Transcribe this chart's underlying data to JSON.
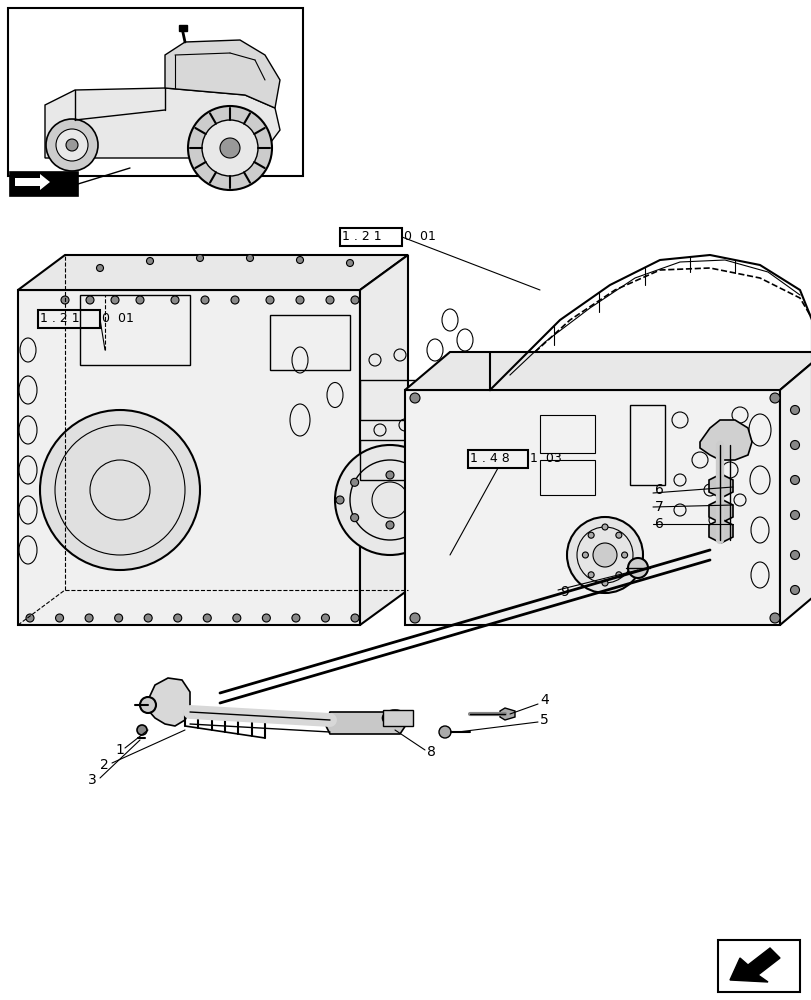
{
  "bg_color": "#ffffff",
  "line_color": "#000000",
  "fig_width": 8.12,
  "fig_height": 10.0,
  "dpi": 100,
  "ref_box1_text": "1 . 2 1",
  "ref_box1_suffix": "0   01",
  "ref_box2_text": "1 . 2 1",
  "ref_box2_suffix": "0   01",
  "ref_box3_text": "1 . 4 8",
  "ref_box3_suffix": "1   03"
}
